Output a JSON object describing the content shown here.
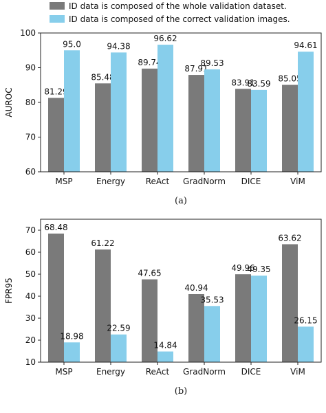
{
  "legend": {
    "items": [
      {
        "label": "ID data is composed of the whole validation dataset.",
        "color": "#7a7a7a"
      },
      {
        "label": "ID data is composed of the correct validation images.",
        "color": "#87ceeb"
      }
    ]
  },
  "chart_data": [
    {
      "type": "bar",
      "caption": "(a)",
      "categories": [
        "MSP",
        "Energy",
        "ReAct",
        "GradNorm",
        "DICE",
        "ViM"
      ],
      "ylabel": "AUROC",
      "ylim": [
        60,
        100
      ],
      "yticks": [
        60,
        70,
        80,
        90,
        100
      ],
      "grid": false,
      "series": [
        {
          "values": [
            81.29,
            85.48,
            89.74,
            87.91,
            83.91,
            85.05
          ],
          "labels": [
            "81.29",
            "85.48",
            "89.74",
            "87.91",
            "83.91",
            "85.05"
          ]
        },
        {
          "values": [
            95.0,
            94.38,
            96.62,
            89.53,
            83.59,
            94.61
          ],
          "labels": [
            "95.0",
            "94.38",
            "96.62",
            "89.53",
            "83.59",
            "94.61"
          ]
        }
      ]
    },
    {
      "type": "bar",
      "caption": "(b)",
      "categories": [
        "MSP",
        "Energy",
        "ReAct",
        "GradNorm",
        "DICE",
        "ViM"
      ],
      "ylabel": "FPR95",
      "ylim": [
        10,
        75
      ],
      "yticks": [
        10,
        20,
        30,
        40,
        50,
        60,
        70
      ],
      "grid": false,
      "series": [
        {
          "values": [
            68.48,
            61.22,
            47.65,
            40.94,
            49.96,
            63.62
          ],
          "labels": [
            "68.48",
            "61.22",
            "47.65",
            "40.94",
            "49.96",
            "63.62"
          ]
        },
        {
          "values": [
            18.98,
            22.59,
            14.84,
            35.53,
            49.35,
            26.15
          ],
          "labels": [
            "18.98",
            "22.59",
            "14.84",
            "35.53",
            "49.35",
            "26.15"
          ]
        }
      ]
    }
  ]
}
